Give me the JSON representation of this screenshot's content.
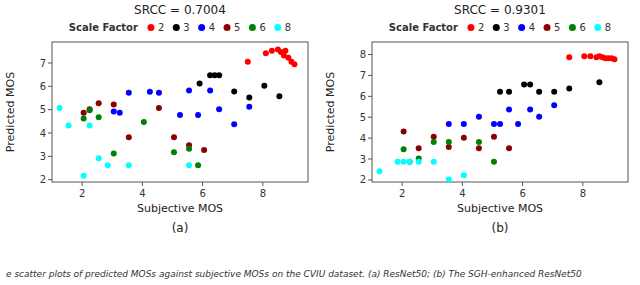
{
  "chart_data": [
    {
      "type": "scatter",
      "title": "SRCC = 0.7004",
      "x_label": "Subjective MOS",
      "y_label": "Predicted MOS",
      "annotations": [
        "(a)"
      ],
      "legend": "top",
      "legend_title": "Scale Factor",
      "grid": false,
      "xlim": [
        1,
        9.5
      ],
      "ylim": [
        1.9,
        7.9
      ],
      "xticks": [
        2,
        4,
        6,
        8
      ],
      "yticks": [
        2,
        3,
        4,
        5,
        6,
        7
      ],
      "series": [
        {
          "name": "2",
          "color": "red",
          "x": [
            7.5,
            8.1,
            8.3,
            8.5,
            8.6,
            8.7,
            8.75,
            8.85,
            8.95,
            9.05
          ],
          "values": [
            7.05,
            7.42,
            7.52,
            7.58,
            7.47,
            7.32,
            7.52,
            7.22,
            7.05,
            6.95
          ]
        },
        {
          "name": "3",
          "color": "black",
          "x": [
            5.9,
            6.25,
            6.4,
            6.55,
            7.05,
            7.55,
            8.05,
            8.55
          ],
          "values": [
            6.12,
            6.47,
            6.47,
            6.47,
            5.78,
            5.52,
            6.02,
            5.57
          ]
        },
        {
          "name": "4",
          "color": "blue",
          "x": [
            3.05,
            3.25,
            3.55,
            4.25,
            4.55,
            5.25,
            5.55,
            5.85,
            6.25,
            6.55,
            7.05,
            7.55
          ],
          "values": [
            4.92,
            4.87,
            5.72,
            5.77,
            5.72,
            4.77,
            5.82,
            4.77,
            5.82,
            5.02,
            4.37,
            5.12
          ]
        },
        {
          "name": "5",
          "color": "#8B0000",
          "x": [
            2.05,
            2.25,
            2.55,
            3.05,
            3.55,
            4.55,
            5.05,
            5.55,
            6.05
          ],
          "values": [
            4.87,
            5.02,
            5.27,
            5.22,
            3.82,
            5.07,
            3.82,
            3.47,
            3.27
          ]
        },
        {
          "name": "6",
          "color": "green",
          "x": [
            2.05,
            2.25,
            2.55,
            3.05,
            4.05,
            5.05,
            5.55,
            5.85
          ],
          "values": [
            4.62,
            4.97,
            4.67,
            3.12,
            4.47,
            3.17,
            3.32,
            2.62
          ]
        },
        {
          "name": "8",
          "color": "cyan",
          "x": [
            1.25,
            1.55,
            2.05,
            2.25,
            2.55,
            2.85,
            3.55,
            5.55
          ],
          "values": [
            5.07,
            4.32,
            2.17,
            4.32,
            2.92,
            2.62,
            2.62,
            2.62
          ]
        }
      ]
    },
    {
      "type": "scatter",
      "title": "SRCC = 0.9301",
      "x_label": "Subjective MOS",
      "y_label": "Predicted MOS",
      "annotations": [
        "(b)"
      ],
      "legend": "top",
      "legend_title": "Scale Factor",
      "grid": false,
      "xlim": [
        1,
        9.5
      ],
      "ylim": [
        1.9,
        8.6
      ],
      "xticks": [
        2,
        4,
        6,
        8
      ],
      "yticks": [
        2,
        3,
        4,
        5,
        6,
        7,
        8
      ],
      "series": [
        {
          "name": "2",
          "color": "red",
          "x": [
            7.55,
            8.05,
            8.25,
            8.45,
            8.55,
            8.65,
            8.75,
            8.85,
            8.95,
            9.05
          ],
          "values": [
            7.87,
            7.92,
            7.92,
            7.87,
            7.92,
            7.87,
            7.82,
            7.82,
            7.82,
            7.77
          ]
        },
        {
          "name": "3",
          "color": "black",
          "x": [
            5.25,
            5.55,
            6.05,
            6.25,
            6.55,
            7.05,
            7.55,
            8.55
          ],
          "values": [
            6.22,
            6.22,
            6.57,
            6.57,
            6.22,
            6.22,
            6.37,
            6.67
          ]
        },
        {
          "name": "4",
          "color": "blue",
          "x": [
            3.55,
            4.05,
            4.55,
            5.05,
            5.25,
            5.55,
            5.85,
            6.25,
            6.55,
            7.05
          ],
          "values": [
            4.67,
            4.67,
            5.02,
            4.67,
            4.67,
            5.37,
            4.67,
            5.37,
            5.02,
            5.57
          ]
        },
        {
          "name": "5",
          "color": "#8B0000",
          "x": [
            2.05,
            2.55,
            3.05,
            3.55,
            4.05,
            4.55,
            5.05,
            5.55
          ],
          "values": [
            4.32,
            3.52,
            4.07,
            3.57,
            4.02,
            3.52,
            4.07,
            3.52
          ]
        },
        {
          "name": "6",
          "color": "green",
          "x": [
            2.05,
            2.25,
            2.55,
            3.05,
            3.55,
            4.55,
            5.05
          ],
          "values": [
            3.47,
            2.87,
            3.02,
            3.82,
            3.82,
            3.82,
            2.87
          ]
        },
        {
          "name": "8",
          "color": "cyan",
          "x": [
            1.25,
            1.85,
            2.05,
            2.25,
            2.55,
            3.05,
            3.55,
            4.05
          ],
          "values": [
            2.42,
            2.87,
            2.87,
            2.87,
            2.87,
            2.87,
            2.02,
            2.22
          ]
        }
      ]
    }
  ],
  "caption": "e scatter plots of predicted MOSs against subjective MOSs on the CVIU dataset. (a) ResNet50; (b) The SGH-enhanced ResNet50"
}
